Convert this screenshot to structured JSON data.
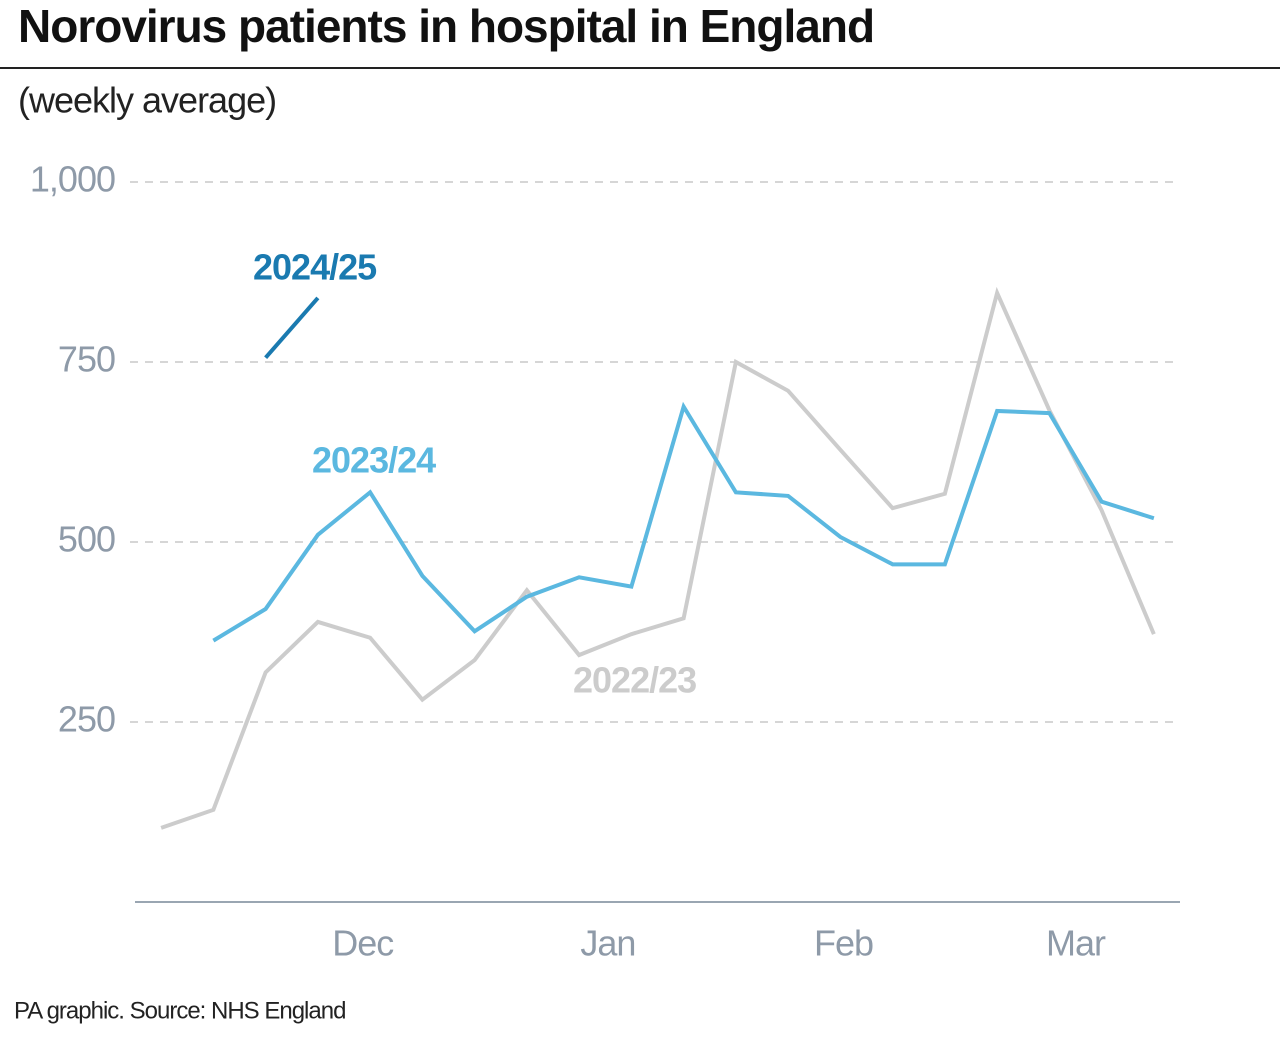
{
  "chart_data": {
    "type": "line",
    "title": "Norovirus patients in hospital in England",
    "subtitle": "(weekly average)",
    "source": "PA graphic. Source: NHS England",
    "x": [
      0,
      1,
      2,
      3,
      4,
      5,
      6,
      7,
      8,
      9,
      10,
      11,
      12,
      13,
      14,
      15,
      16,
      17,
      18,
      19
    ],
    "xlim": [
      -0.5,
      19.5
    ],
    "xticks": [
      {
        "value": 3.86,
        "label": "Dec"
      },
      {
        "value": 8.55,
        "label": "Jan"
      },
      {
        "value": 13.06,
        "label": "Feb"
      },
      {
        "value": 17.5,
        "label": "Mar"
      }
    ],
    "ylim": [
      0,
      1000
    ],
    "yticks": [
      250,
      500,
      750,
      {
        "value": 1000,
        "label": "1,000"
      }
    ],
    "grid": true,
    "series": [
      {
        "name": "2022/23",
        "color": "#cccccc",
        "values": [
          103,
          128,
          319,
          389,
          367,
          281,
          336,
          433,
          343,
          372,
          394,
          750,
          710,
          628,
          547,
          567,
          846,
          683,
          544,
          372
        ]
      },
      {
        "name": "2023/24",
        "color": "#5bb8e0",
        "values": [
          null,
          363,
          407,
          510,
          569,
          453,
          376,
          424,
          451,
          438,
          688,
          569,
          564,
          507,
          469,
          469,
          682,
          679,
          556,
          533
        ]
      },
      {
        "name": "2024/25",
        "color": "#1a7ab0",
        "values": [
          null,
          null,
          756,
          839,
          null,
          null,
          null,
          null,
          null,
          null,
          null,
          null,
          null,
          null,
          null,
          null,
          null,
          null,
          null,
          null
        ]
      }
    ]
  }
}
